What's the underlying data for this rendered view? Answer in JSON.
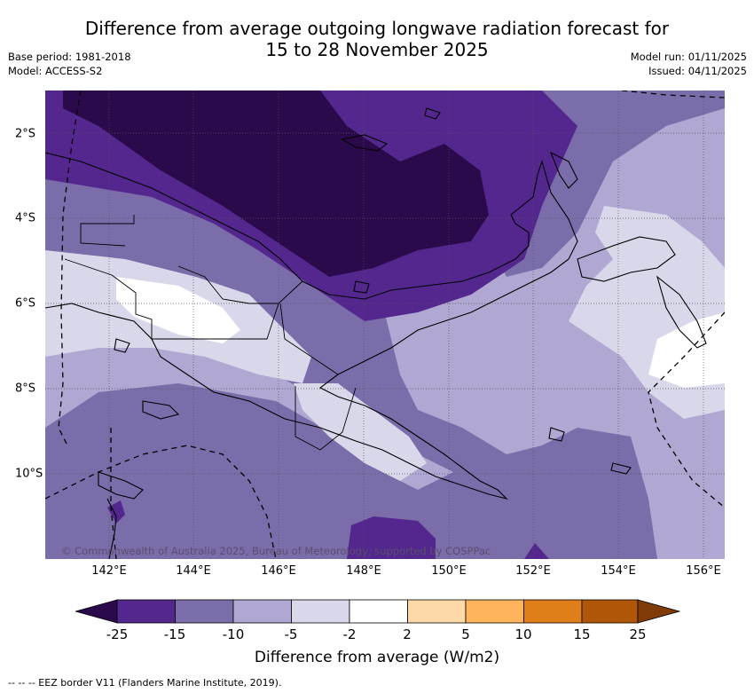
{
  "title": {
    "line1": "Difference from average outgoing longwave radiation forecast for",
    "line2": "15 to 28 November 2025"
  },
  "meta_left": {
    "base_period": "Base period: 1981-2018",
    "model": "Model: ACCESS-S2"
  },
  "meta_right": {
    "model_run": "Model run: 01/11/2025",
    "issued": "Issued: 04/11/2025"
  },
  "map": {
    "region": "Papua New Guinea",
    "copyright": "© Commonwealth of Australia 2025, Bureau of Meteorology, supported by COSPPac",
    "lon_labels": [
      "142°E",
      "144°E",
      "146°E",
      "148°E",
      "150°E",
      "152°E",
      "154°E",
      "156°E"
    ],
    "lat_labels": [
      "2°S",
      "4°S",
      "6°S",
      "8°S",
      "10°S"
    ]
  },
  "colorbar": {
    "label": "Difference from average (W/m2)",
    "ticks": [
      "-25",
      "-15",
      "-10",
      "-5",
      "-2",
      "2",
      "5",
      "10",
      "15",
      "25"
    ],
    "colors": {
      "lt_m25": "#2a0a4a",
      "m25_m15": "#54278f",
      "m15_m10": "#7b6daa",
      "m10_m5": "#b0a8d2",
      "m5_m2": "#d8d8ea",
      "m2_2": "#ffffff",
      "p2_5": "#fdd8a8",
      "p5_10": "#fdb45c",
      "p10_15": "#e07f1a",
      "p15_25": "#b05609",
      "gt_25": "#7f3b08"
    }
  },
  "footnote": "-- -- -- EEZ border V11 (Flanders Marine Institute, 2019)."
}
